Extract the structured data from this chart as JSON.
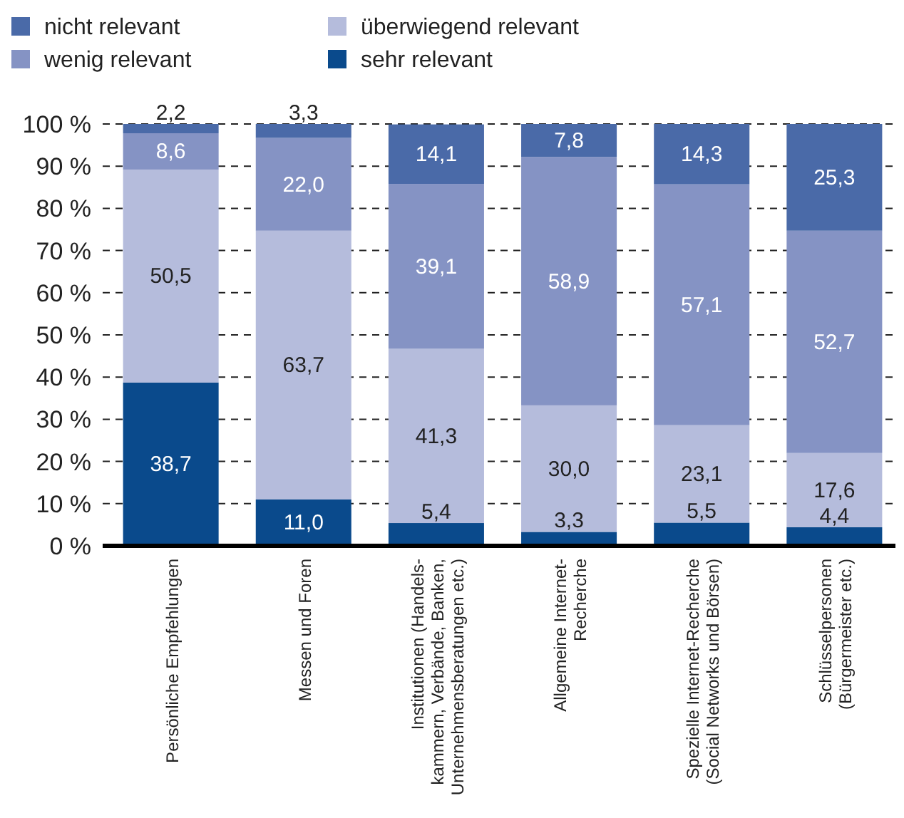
{
  "chart_data": {
    "type": "bar",
    "stacked": true,
    "categories": [
      "Persönliche Empfehlungen",
      "Messen und Foren",
      "Institutionen (Handels-\nkammern, Verbände, Banken,\nUnternehmensberatungen etc.)",
      "Allgemeine Internet-\nRecherche",
      "Spezielle Internet-Recherche\n(Social Networks und Börsen)",
      "Schlüsselpersonen\n(Bürgermeister etc.)"
    ],
    "series": [
      {
        "name": "sehr relevant",
        "color": "#0a4a8c",
        "values": [
          38.7,
          11.0,
          5.4,
          3.3,
          5.5,
          4.4
        ],
        "value_labels": [
          "38,7",
          "11,0",
          "5,4",
          "3,3",
          "5,5",
          "4,4"
        ]
      },
      {
        "name": "überwiegend relevant",
        "color": "#b5bcdc",
        "values": [
          50.5,
          63.7,
          41.3,
          30.0,
          23.1,
          17.6
        ],
        "value_labels": [
          "50,5",
          "63,7",
          "41,3",
          "30,0",
          "23,1",
          "17,6"
        ]
      },
      {
        "name": "wenig relevant",
        "color": "#8593c4",
        "values": [
          8.6,
          22.0,
          39.1,
          58.9,
          57.1,
          52.7
        ],
        "value_labels": [
          "8,6",
          "22,0",
          "39,1",
          "58,9",
          "57,1",
          "52,7"
        ]
      },
      {
        "name": "nicht relevant",
        "color": "#4a6aa8",
        "values": [
          2.2,
          3.3,
          14.1,
          7.8,
          14.3,
          25.3
        ],
        "value_labels": [
          "2,2",
          "3,3",
          "14,1",
          "7,8",
          "14,3",
          "25,3"
        ]
      }
    ],
    "ylim": [
      0,
      100
    ],
    "yticks": [
      {
        "value": 0,
        "label": "0 %"
      },
      {
        "value": 10,
        "label": "10 %"
      },
      {
        "value": 20,
        "label": "20 %"
      },
      {
        "value": 30,
        "label": "30 %"
      },
      {
        "value": 40,
        "label": "40 %"
      },
      {
        "value": 50,
        "label": "50 %"
      },
      {
        "value": 60,
        "label": "60 %"
      },
      {
        "value": 70,
        "label": "70 %"
      },
      {
        "value": 80,
        "label": "80 %"
      },
      {
        "value": 90,
        "label": "90 %"
      },
      {
        "value": 100,
        "label": "100 %"
      }
    ],
    "grid": "y",
    "legend": "top left"
  }
}
